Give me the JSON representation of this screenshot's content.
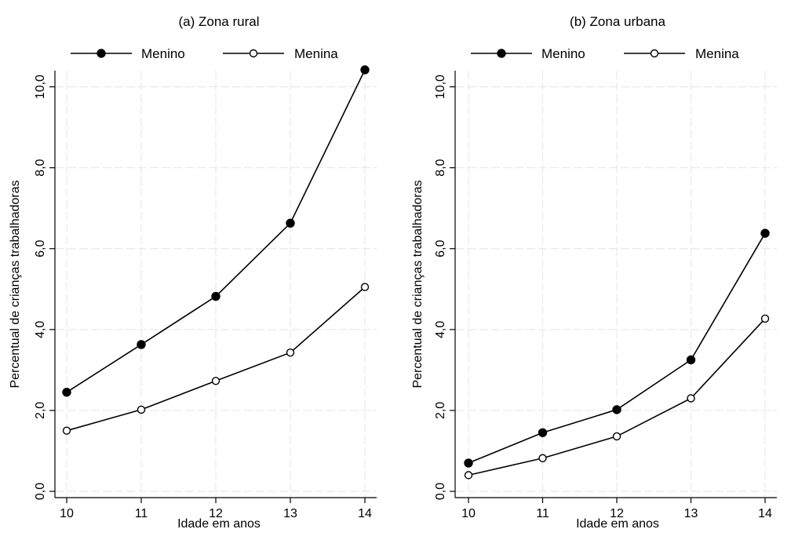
{
  "caption": "",
  "chart_data": [
    {
      "type": "line",
      "title": "(a) Zona rural",
      "xlabel": "Idade em anos",
      "ylabel": "Percentual de crianças trabalhadoras",
      "x": [
        10,
        11,
        12,
        13,
        14
      ],
      "xticks": [
        "10",
        "11",
        "12",
        "13",
        "14"
      ],
      "yticks": [
        0,
        2,
        4,
        6,
        8,
        10
      ],
      "yticklabels": [
        "0,0",
        "2,0",
        "4,0",
        "6,0",
        "8,0",
        "10,0"
      ],
      "ylim": [
        0,
        10.4
      ],
      "grid": true,
      "legend_position": "top",
      "series": [
        {
          "name": "Menino",
          "marker": "filled-circle",
          "values": [
            2.45,
            3.63,
            4.82,
            6.63,
            10.42
          ]
        },
        {
          "name": "Menina",
          "marker": "hollow-circle",
          "values": [
            1.5,
            2.02,
            2.73,
            3.43,
            5.05
          ]
        }
      ]
    },
    {
      "type": "line",
      "title": "(b) Zona urbana",
      "xlabel": "Idade em anos",
      "ylabel": "Percentual de crianças trabalhadoras",
      "x": [
        10,
        11,
        12,
        13,
        14
      ],
      "xticks": [
        "10",
        "11",
        "12",
        "13",
        "14"
      ],
      "yticks": [
        0,
        2,
        4,
        6,
        8,
        10
      ],
      "yticklabels": [
        "0,0",
        "2,0",
        "4,0",
        "6,0",
        "8,0",
        "10,0"
      ],
      "ylim": [
        0,
        10.4
      ],
      "grid": true,
      "legend_position": "top",
      "series": [
        {
          "name": "Menino",
          "marker": "filled-circle",
          "values": [
            0.7,
            1.45,
            2.02,
            3.25,
            6.38
          ]
        },
        {
          "name": "Menina",
          "marker": "hollow-circle",
          "values": [
            0.4,
            0.82,
            1.36,
            2.3,
            4.27
          ]
        }
      ]
    }
  ]
}
